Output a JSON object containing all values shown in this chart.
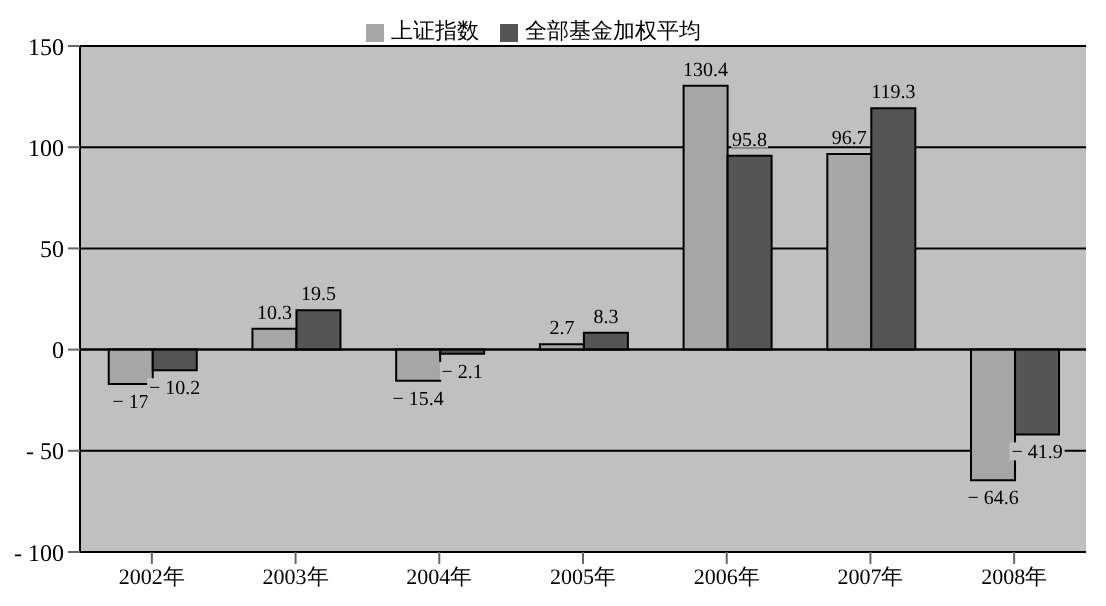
{
  "chart_data": {
    "type": "bar",
    "categories": [
      "2002年",
      "2003年",
      "2004年",
      "2005年",
      "2006年",
      "2007年",
      "2008年"
    ],
    "series": [
      {
        "name": "上证指数",
        "color": "#a6a6a6",
        "values": [
          -17,
          10.3,
          -15.4,
          2.7,
          130.4,
          96.7,
          -64.6
        ],
        "value_labels": [
          "− 17",
          "10.3",
          "− 15.4",
          "2.7",
          "130.4",
          "96.7",
          "− 64.6"
        ]
      },
      {
        "name": "全部基金加权平均",
        "color": "#555555",
        "values": [
          -10.2,
          19.5,
          -2.1,
          8.3,
          95.8,
          119.3,
          -41.9
        ],
        "value_labels": [
          "− 10.2",
          "19.5",
          "− 2.1",
          "8.3",
          "95.8",
          "119.3",
          "− 41.9"
        ]
      }
    ],
    "ylim": [
      -100,
      150
    ],
    "yticks": [
      -100,
      -50,
      0,
      50,
      100,
      150
    ],
    "grid": "y",
    "legend": "top"
  }
}
